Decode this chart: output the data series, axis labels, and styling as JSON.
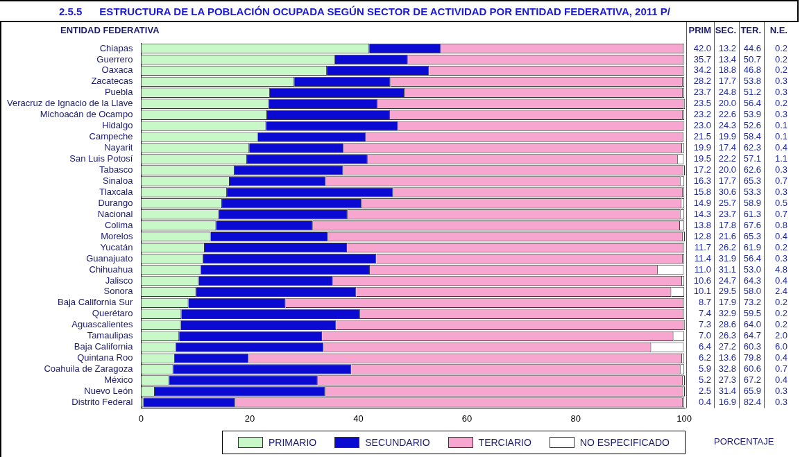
{
  "chart_data": {
    "type": "bar",
    "orientation": "horizontal",
    "stacked": true,
    "title": "2.5.5      ESTRUCTURA DE LA POBLACIÓN OCUPADA SEGÚN SECTOR DE ACTIVIDAD POR ENTIDAD FEDERATIVA, 2011 P/",
    "ylabel": "ENTIDAD FEDERATIVA",
    "xlabel": "PORCENTAJE",
    "annotations": [
      "PRIM",
      "SEC.",
      "TER.",
      "N.E."
    ],
    "categories": [
      "Chiapas",
      "Guerrero",
      "Oaxaca",
      "Zacatecas",
      "Puebla",
      "Veracruz de Ignacio de la Llave",
      "Michoacán de Ocampo",
      "Hidalgo",
      "Campeche",
      "Nayarit",
      "San Luis Potosí",
      "Tabasco",
      "Sinaloa",
      "Tlaxcala",
      "Durango",
      "Nacional",
      "Colima",
      "Morelos",
      "Yucatán",
      "Guanajuato",
      "Chihuahua",
      "Jalisco",
      "Sonora",
      "Baja California Sur",
      "Querétaro",
      "Aguascalientes",
      "Tamaulipas",
      "Baja California",
      "Quintana Roo",
      "Coahuila de Zaragoza",
      "México",
      "Nuevo León",
      "Distrito Federal"
    ],
    "series": [
      {
        "name": "PRIMARIO",
        "color": "#c8f7c8",
        "values": [
          42.0,
          35.7,
          34.2,
          28.2,
          23.7,
          23.5,
          23.2,
          23.0,
          21.5,
          19.9,
          19.5,
          17.2,
          16.3,
          15.8,
          14.9,
          14.3,
          13.8,
          12.8,
          11.7,
          11.4,
          11.0,
          10.6,
          10.1,
          8.7,
          7.4,
          7.3,
          7.0,
          6.4,
          6.2,
          5.9,
          5.2,
          2.5,
          0.4
        ],
        "value_labels": [
          "42.0",
          "35.7",
          "34.2",
          "28.2",
          "23.7",
          "23.5",
          "23.2",
          "23.0",
          "21.5",
          "19.9",
          "19.5",
          "17.2",
          "16.3",
          "15.8",
          "14.9",
          "14.3",
          "13.8",
          "12.8",
          "11.7",
          "11.4",
          "11.0",
          "10.6",
          "10.1",
          "8.7",
          "7.4",
          "7.3",
          "7.0",
          "6.4",
          "6.2",
          "5.9",
          "5.2",
          "2.5",
          "0.4"
        ]
      },
      {
        "name": "SECUNDARIO",
        "color": "#0a0ad2",
        "values": [
          13.2,
          13.4,
          18.8,
          17.7,
          24.8,
          20.0,
          22.6,
          24.3,
          19.9,
          17.4,
          22.2,
          20.0,
          17.7,
          30.6,
          25.7,
          23.7,
          17.8,
          21.6,
          26.2,
          31.9,
          31.1,
          24.7,
          29.5,
          17.9,
          32.9,
          28.6,
          26.3,
          27.2,
          13.6,
          32.8,
          27.3,
          31.4,
          16.9
        ],
        "value_labels": [
          "13.2",
          "13.4",
          "18.8",
          "17.7",
          "24.8",
          "20.0",
          "22.6",
          "24.3",
          "19.9",
          "17.4",
          "22.2",
          "20.0",
          "17.7",
          "30.6",
          "25.7",
          "23.7",
          "17.8",
          "21.6",
          "26.2",
          "31.9",
          "31.1",
          "24.7",
          "29.5",
          "17.9",
          "32.9",
          "28.6",
          "26.3",
          "27.2",
          "13.6",
          "32.8",
          "27.3",
          "31.4",
          "16.9"
        ]
      },
      {
        "name": "TERCIARIO",
        "color": "#f7a6cf",
        "values": [
          44.6,
          50.7,
          46.8,
          53.8,
          51.2,
          56.4,
          53.9,
          52.6,
          58.4,
          62.3,
          57.1,
          62.6,
          65.3,
          53.3,
          58.9,
          61.3,
          67.6,
          65.3,
          61.9,
          56.4,
          53.0,
          64.3,
          58.0,
          73.2,
          59.5,
          64.0,
          64.7,
          60.3,
          79.8,
          60.6,
          67.2,
          65.9,
          82.4
        ],
        "value_labels": [
          "44.6",
          "50.7",
          "46.8",
          "53.8",
          "51.2",
          "56.4",
          "53.9",
          "52.6",
          "58.4",
          "62.3",
          "57.1",
          "62.6",
          "65.3",
          "53.3",
          "58.9",
          "61.3",
          "67.6",
          "65.3",
          "61.9",
          "56.4",
          "53.0",
          "64.3",
          "58.0",
          "73.2",
          "59.5",
          "64.0",
          "64.7",
          "60.3",
          "79.8",
          "60.6",
          "67.2",
          "65.9",
          "82.4"
        ]
      },
      {
        "name": "NO ESPECIFICADO",
        "color": "#ffffff",
        "values": [
          0.2,
          0.2,
          0.2,
          0.3,
          0.3,
          0.2,
          0.3,
          0.1,
          0.1,
          0.4,
          1.1,
          0.3,
          0.7,
          0.3,
          0.5,
          0.7,
          0.8,
          0.4,
          0.2,
          0.3,
          4.8,
          0.4,
          2.4,
          0.2,
          0.2,
          0.2,
          2.0,
          6.0,
          0.4,
          0.7,
          0.4,
          0.3,
          0.3
        ],
        "value_labels": [
          "0.2",
          "0.2",
          "0.2",
          "0.3",
          "0.3",
          "0.2",
          "0.3",
          "0.1",
          "0.1",
          "0.4",
          "1.1",
          "0.3",
          "0.7",
          "0.3",
          "0.5",
          "0.7",
          "0.8",
          "0.4",
          "0.2",
          "0.3",
          "4.8",
          "0.4",
          "2.4",
          "0.2",
          "0.2",
          "0.2",
          "2.0",
          "6.0",
          "0.4",
          "0.7",
          "0.4",
          "0.3",
          "0.3"
        ]
      }
    ],
    "xlim": [
      0,
      100.1
    ],
    "xticks": [
      0,
      20,
      40,
      60,
      80,
      100
    ],
    "grid": false,
    "legend": "bottom"
  }
}
